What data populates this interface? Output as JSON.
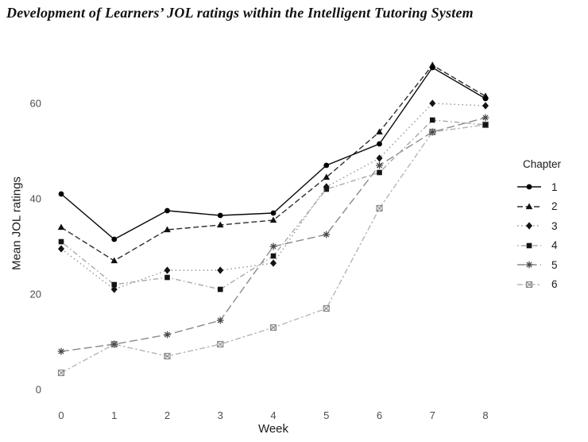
{
  "title": "Development of Learners’ JOL ratings within the Intelligent Tutoring System",
  "legend": {
    "title": "Chapter"
  },
  "colors": {
    "background": "#ffffff",
    "tick_label": "#4d4d4d",
    "axis_label": "#1a1a1a",
    "title": "#111111"
  },
  "chart_data": {
    "type": "line",
    "title": "Development of Learners’ JOL ratings within the Intelligent Tutoring System",
    "xlabel": "Week",
    "ylabel": "Mean JOL ratings",
    "x": [
      0,
      1,
      2,
      3,
      4,
      5,
      6,
      7,
      8
    ],
    "x_ticks": [
      0,
      1,
      2,
      3,
      4,
      5,
      6,
      7,
      8
    ],
    "y_ticks": [
      0,
      20,
      40,
      60
    ],
    "xlim": [
      0,
      8
    ],
    "ylim": [
      0,
      70
    ],
    "grid": false,
    "legend_title": "Chapter",
    "legend_position": "right",
    "series": [
      {
        "name": "1",
        "marker": "circle",
        "line": "solid",
        "color": "#0a0a0a",
        "marker_color": "#000000",
        "values": [
          41,
          31.5,
          37.5,
          36.5,
          37,
          47,
          51.5,
          67.5,
          61
        ]
      },
      {
        "name": "2",
        "marker": "triangle",
        "line": "dashed",
        "color": "#2e2e2e",
        "marker_color": "#111111",
        "values": [
          34,
          27,
          33.5,
          34.5,
          35.5,
          44.5,
          54,
          68,
          61.5
        ]
      },
      {
        "name": "3",
        "marker": "diamond",
        "line": "dotted",
        "color": "#9c9c9c",
        "marker_color": "#141414",
        "values": [
          29.5,
          21,
          25,
          25,
          26.5,
          42.5,
          48.5,
          60,
          59.5
        ]
      },
      {
        "name": "4",
        "marker": "square",
        "line": "dotdash",
        "color": "#a8a8a8",
        "marker_color": "#141414",
        "values": [
          31,
          22,
          23.5,
          21,
          28,
          42,
          45.5,
          56.5,
          55.5
        ]
      },
      {
        "name": "5",
        "marker": "asterisk",
        "line": "longdash",
        "color": "#8a8a8a",
        "marker_color": "#474747",
        "values": [
          8,
          9.5,
          11.5,
          14.5,
          30,
          32.5,
          47,
          54,
          57
        ]
      },
      {
        "name": "6",
        "marker": "square-x",
        "line": "twodash",
        "color": "#b5b5b5",
        "marker_color": "#8a8a8a",
        "values": [
          3.5,
          9.5,
          7,
          9.5,
          13,
          17,
          38,
          54,
          55.5
        ]
      }
    ]
  }
}
